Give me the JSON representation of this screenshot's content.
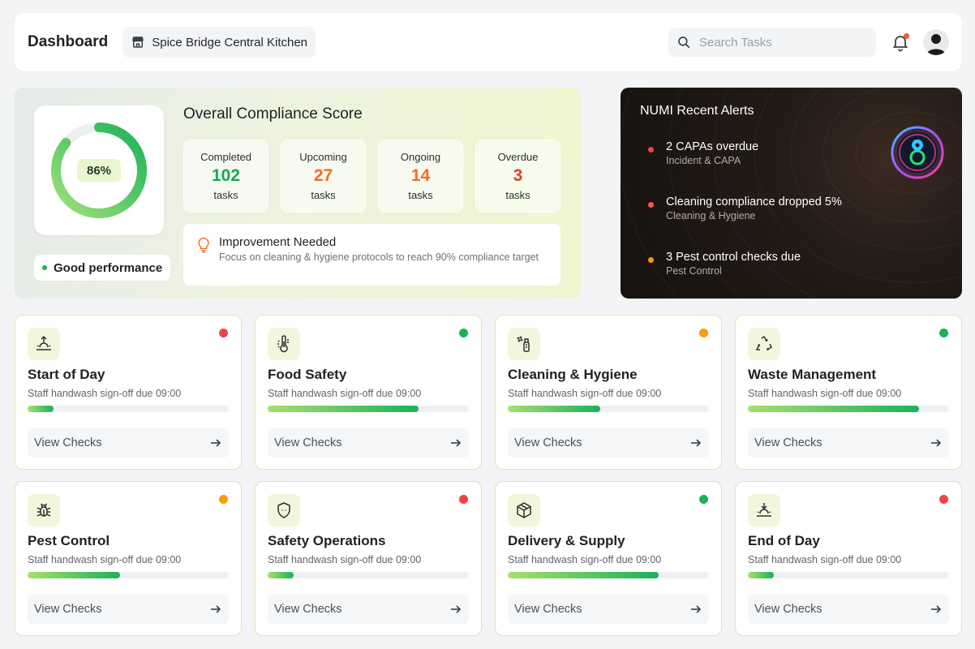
{
  "header": {
    "title": "Dashboard",
    "location": "Spice Bridge Central Kitchen",
    "search_placeholder": "Search Tasks"
  },
  "compliance": {
    "title": "Overall Compliance Score",
    "score_percent": 86,
    "score_label": "86%",
    "performance_label": "Good performance",
    "stats": [
      {
        "label": "Completed",
        "value": "102",
        "unit": "tasks",
        "color": "#18a84f"
      },
      {
        "label": "Upcoming",
        "value": "27",
        "unit": "tasks",
        "color": "#f26a2a"
      },
      {
        "label": "Ongoing",
        "value": "14",
        "unit": "tasks",
        "color": "#f26a2a"
      },
      {
        "label": "Overdue",
        "value": "3",
        "unit": "tasks",
        "color": "#e63b2e"
      }
    ],
    "improvement": {
      "title": "Improvement Needed",
      "text": "Focus on cleaning & hygiene protocols to reach 90% compliance target"
    }
  },
  "alerts": {
    "title": "NUMI Recent Alerts",
    "items": [
      {
        "title": "2 CAPAs overdue",
        "category": "Incident & CAPA",
        "color": "#ef4444"
      },
      {
        "title": "Cleaning compliance dropped 5%",
        "category": "Cleaning & Hygiene",
        "color": "#f05a44"
      },
      {
        "title": "3 Pest control checks due",
        "category": "Pest Control",
        "color": "#f59e0b"
      }
    ]
  },
  "cards": [
    {
      "name": "Start of Day",
      "subtitle": "Staff handwash sign-off due 09:00",
      "progress": 0.13,
      "status_color": "#ef4444",
      "icon": "sunrise-icon",
      "button": "View Checks"
    },
    {
      "name": "Food Safety",
      "subtitle": "Staff handwash sign-off due 09:00",
      "progress": 0.75,
      "status_color": "#1bb15a",
      "icon": "thermometer-icon",
      "button": "View Checks"
    },
    {
      "name": "Cleaning & Hygiene",
      "subtitle": "Staff handwash sign-off due 09:00",
      "progress": 0.46,
      "status_color": "#f59e0b",
      "icon": "spray-bottle-icon",
      "button": "View Checks"
    },
    {
      "name": "Waste Management",
      "subtitle": "Staff handwash sign-off due 09:00",
      "progress": 0.85,
      "status_color": "#1bb15a",
      "icon": "recycle-icon",
      "button": "View Checks"
    },
    {
      "name": "Pest Control",
      "subtitle": "Staff handwash sign-off due 09:00",
      "progress": 0.46,
      "status_color": "#f59e0b",
      "icon": "bug-icon",
      "button": "View Checks"
    },
    {
      "name": "Safety Operations",
      "subtitle": "Staff handwash sign-off due 09:00",
      "progress": 0.13,
      "status_color": "#ef4444",
      "icon": "shield-icon",
      "button": "View Checks"
    },
    {
      "name": "Delivery & Supply",
      "subtitle": "Staff handwash sign-off due 09:00",
      "progress": 0.75,
      "status_color": "#1bb15a",
      "icon": "package-icon",
      "button": "View Checks"
    },
    {
      "name": "End of Day",
      "subtitle": "Staff handwash sign-off due 09:00",
      "progress": 0.13,
      "status_color": "#ef4444",
      "icon": "sunset-icon",
      "button": "View Checks"
    }
  ]
}
